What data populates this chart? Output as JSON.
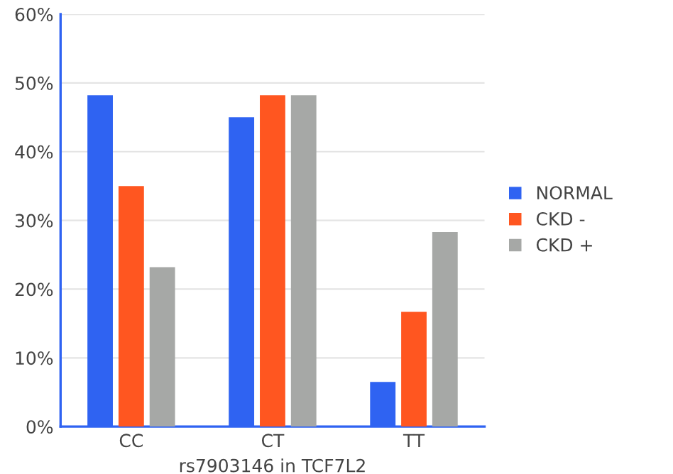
{
  "chart_data": {
    "type": "bar",
    "xlabel": "rs7903146 in TCF7L2",
    "categories": [
      "CC",
      "CT",
      "TT"
    ],
    "series": [
      {
        "name": "NORMAL",
        "color": "#2f63f2",
        "values": [
          48.2,
          45.0,
          6.5
        ]
      },
      {
        "name": "CKD -",
        "color": "#ff5620",
        "values": [
          35.0,
          48.2,
          16.7
        ]
      },
      {
        "name": "CKD +",
        "color": "#a6a8a6",
        "values": [
          23.2,
          48.2,
          28.3
        ]
      }
    ],
    "ylim": [
      0,
      60
    ],
    "yticks": [
      {
        "value": 0,
        "label": "0%"
      },
      {
        "value": 10,
        "label": "10%"
      },
      {
        "value": 20,
        "label": "20%"
      },
      {
        "value": 30,
        "label": "30%"
      },
      {
        "value": 40,
        "label": "40%"
      },
      {
        "value": 50,
        "label": "50%"
      },
      {
        "value": 60,
        "label": "60%"
      }
    ],
    "grid": "y",
    "legend": "right"
  }
}
